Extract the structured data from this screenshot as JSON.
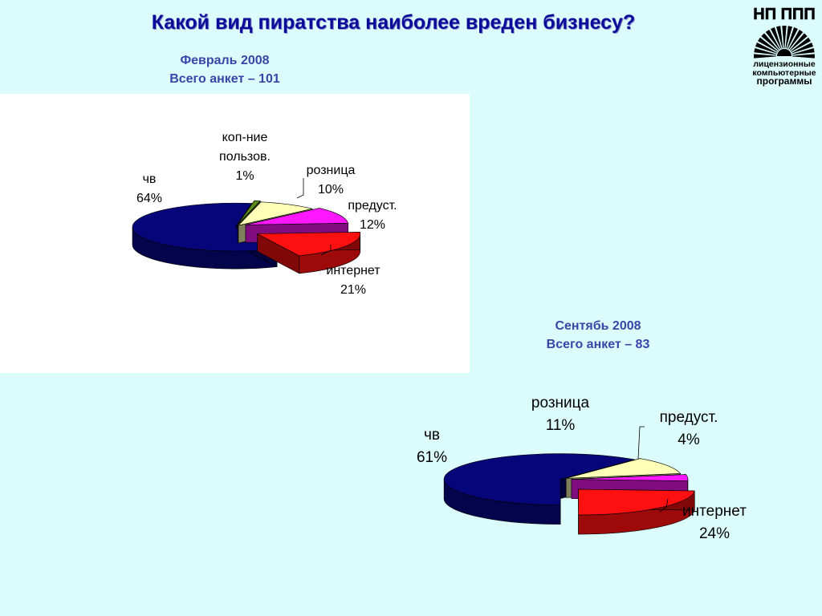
{
  "title": "Какой вид пиратства наиболее вреден бизнесу?",
  "logo": {
    "top": "НП ППП",
    "lines": [
      "лицензионные",
      "компьютерные",
      "программы"
    ]
  },
  "colors": {
    "chv": "#06067a",
    "kop": "#5a8a18",
    "roznica": "#ffffb8",
    "predust": "#ff18ff",
    "internet": "#ff1010",
    "connector": "#9a9a6a"
  },
  "chart_data": [
    {
      "type": "pie",
      "subtitle_lines": [
        "Февраль 2008",
        "Всего анкет – 101"
      ],
      "slices": [
        {
          "key": "chv",
          "label_lines": [
            "чв"
          ],
          "value": 64,
          "percent": "64%"
        },
        {
          "key": "kop",
          "label_lines": [
            "коп-ние",
            "пользов."
          ],
          "value": 1,
          "percent": "1%"
        },
        {
          "key": "roznica",
          "label_lines": [
            "розница"
          ],
          "value": 10,
          "percent": "10%"
        },
        {
          "key": "predust",
          "label_lines": [
            "предуст."
          ],
          "value": 12,
          "percent": "12%"
        },
        {
          "key": "internet",
          "label_lines": [
            "интернет"
          ],
          "value": 21,
          "percent": "21%"
        }
      ]
    },
    {
      "type": "pie",
      "subtitle_lines": [
        "Сентябь 2008",
        "Всего анкет – 83"
      ],
      "slices": [
        {
          "key": "chv",
          "label_lines": [
            "чв"
          ],
          "value": 61,
          "percent": "61%"
        },
        {
          "key": "roznica",
          "label_lines": [
            "розница"
          ],
          "value": 11,
          "percent": "11%"
        },
        {
          "key": "predust",
          "label_lines": [
            "предуст."
          ],
          "value": 4,
          "percent": "4%"
        },
        {
          "key": "internet",
          "label_lines": [
            "интернет"
          ],
          "value": 24,
          "percent": "24%"
        }
      ]
    }
  ]
}
